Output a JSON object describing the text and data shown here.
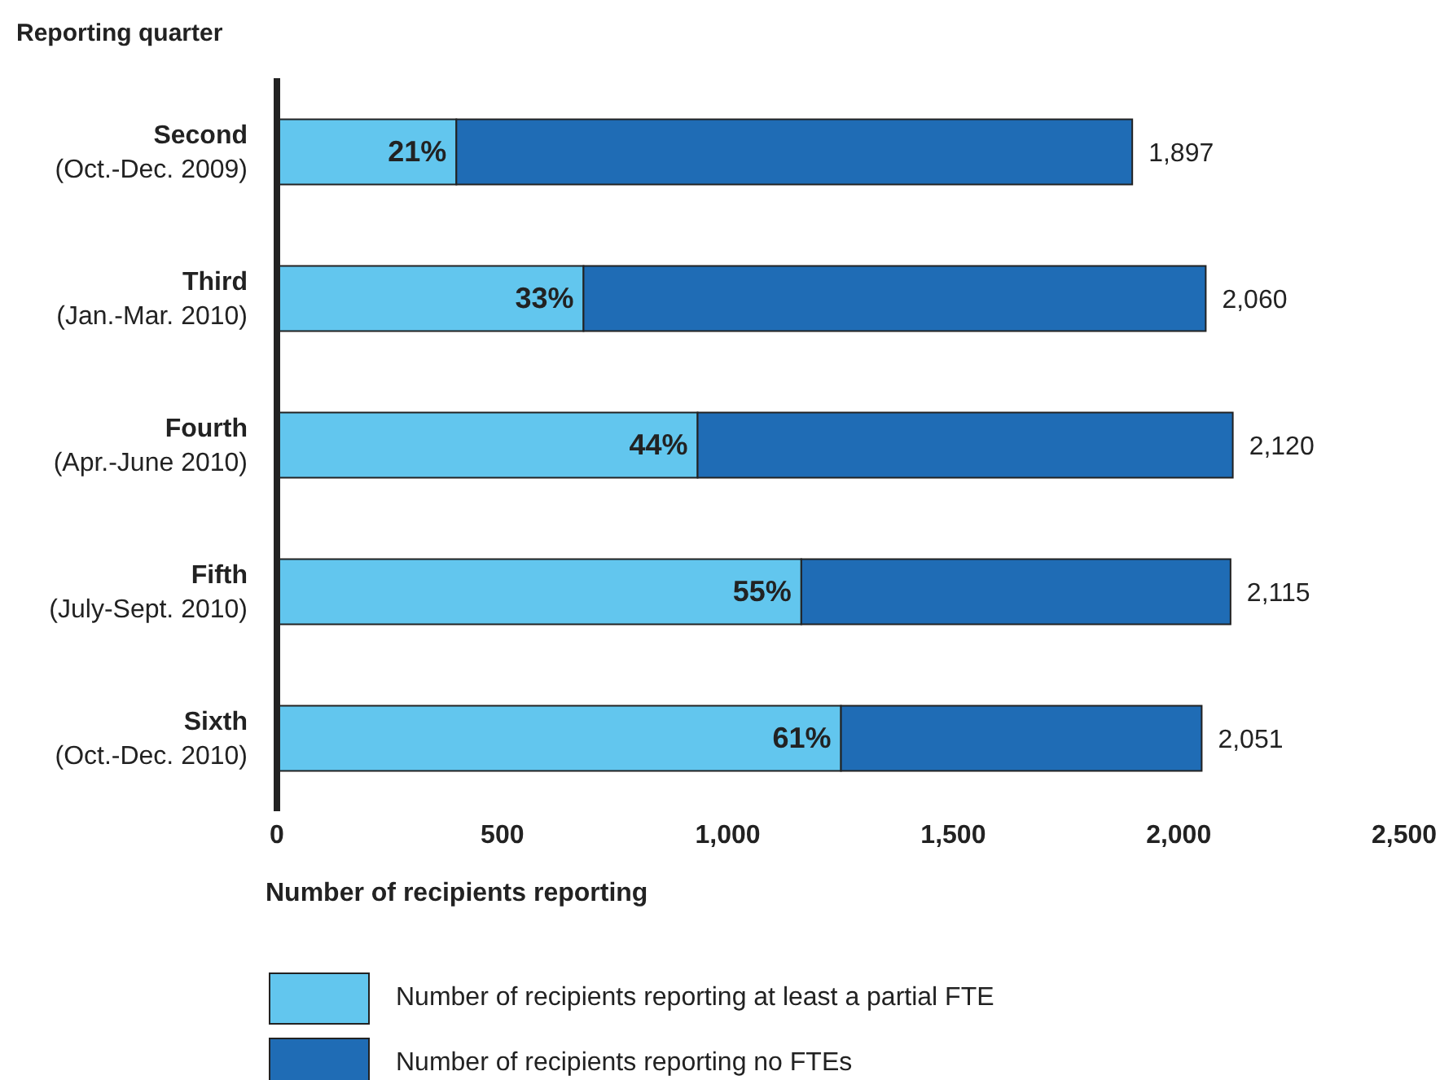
{
  "chart_data": {
    "type": "bar",
    "orientation": "horizontal",
    "stacked": true,
    "ylabel": "Reporting quarter",
    "xlabel": "Number of recipients reporting",
    "categories": [
      "Second\n(Oct.-Dec. 2009)",
      "Third\n(Jan.-Mar. 2010)",
      "Fourth\n(Apr.-June 2010)",
      "Fifth\n(July-Sept. 2010)",
      "Sixth\n(Oct.-Dec. 2010)"
    ],
    "series": [
      {
        "name": "Number of recipients reporting at least a partial FTE",
        "color": "#62c6ee",
        "values": [
          398,
          680,
          933,
          1163,
          1251
        ]
      },
      {
        "name": "Number of recipients reporting no FTEs",
        "color": "#1f6cb5",
        "values": [
          1499,
          1380,
          1187,
          952,
          800
        ]
      }
    ],
    "totals": [
      "1,897",
      "2,060",
      "2,120",
      "2,115",
      "2,051"
    ],
    "xlim": [
      0,
      2500
    ],
    "xticks": [
      0,
      500,
      {
        "value": 1000,
        "label": "1,000"
      },
      {
        "value": 1500,
        "label": "1,500"
      },
      {
        "value": 2000,
        "label": "2,000"
      },
      {
        "value": 2500,
        "label": "2,500"
      }
    ],
    "annotations": [
      {
        "text": "21%",
        "x": 398,
        "y": "Second\n(Oct.-Dec. 2009)"
      },
      {
        "text": "33%",
        "x": 680,
        "y": "Third\n(Jan.-Mar. 2010)"
      },
      {
        "text": "44%",
        "x": 933,
        "y": "Fourth\n(Apr.-June 2010)"
      },
      {
        "text": "55%",
        "x": 1163,
        "y": "Fifth\n(July-Sept. 2010)"
      },
      {
        "text": "61%",
        "x": 1251,
        "y": "Sixth\n(Oct.-Dec. 2010)"
      }
    ],
    "legend": "bottom"
  }
}
